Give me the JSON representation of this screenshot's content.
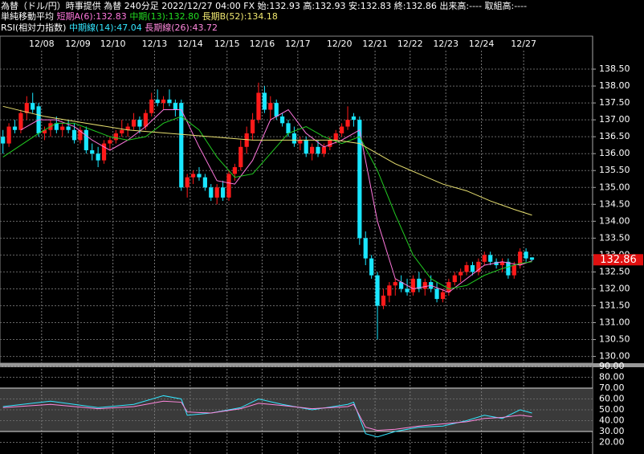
{
  "header": {
    "line1": "為替（ドル/円）時事提供 為替 240分足 2022/12/27 04:00 FX 始:132.93 高:132.93 安:132.83 終:132.86 出来高:---- 取組高:----",
    "ma_title": "単純移動平均",
    "ma_short": "短期A(6):132.83",
    "ma_mid": "中期(13):132.80",
    "ma_long": "長期B(52):134.18",
    "rsi_title": "RSI(相対力指数)",
    "rsi_mid": "中期線(14):47.04",
    "rsi_long": "長期線(26):43.72"
  },
  "chart_data": [
    {
      "type": "candlestick",
      "up_color": "#ff1a1a",
      "down_color": "#19e6ff",
      "grid": true,
      "xlim": [
        -0.5,
        99.2
      ],
      "xticks": [
        {
          "value": 6.5,
          "label": "12/08"
        },
        {
          "value": 12.6,
          "label": "12/09"
        },
        {
          "value": 18.5,
          "label": "12/10"
        },
        {
          "value": 25.5,
          "label": "12/13"
        },
        {
          "value": 31.5,
          "label": "12/14"
        },
        {
          "value": 37.7,
          "label": "12/15"
        },
        {
          "value": 43.6,
          "label": "12/16"
        },
        {
          "value": 49.6,
          "label": "12/17"
        },
        {
          "value": 56.6,
          "label": "12/20"
        },
        {
          "value": 62.6,
          "label": "12/21"
        },
        {
          "value": 68.5,
          "label": "12/22"
        },
        {
          "value": 74.5,
          "label": "12/23"
        },
        {
          "value": 80.5,
          "label": "12/24"
        },
        {
          "value": 87.6,
          "label": "12/27"
        }
      ],
      "ylim": [
        129.8,
        139.0
      ],
      "yticks": [
        {
          "value": 130,
          "label": "130.00"
        },
        {
          "value": 130.5,
          "label": "130.50"
        },
        {
          "value": 131,
          "label": "131.00"
        },
        {
          "value": 131.5,
          "label": "131.50"
        },
        {
          "value": 132,
          "label": "132.00"
        },
        {
          "value": 132.5,
          "label": "132.50"
        },
        {
          "value": 133,
          "label": "133.00"
        },
        {
          "value": 133.5,
          "label": "133.50"
        },
        {
          "value": 134,
          "label": "134.00"
        },
        {
          "value": 134.5,
          "label": "134.50"
        },
        {
          "value": 135,
          "label": "135.00"
        },
        {
          "value": 135.5,
          "label": "135.50"
        },
        {
          "value": 136,
          "label": "136.00"
        },
        {
          "value": 136.5,
          "label": "136.50"
        },
        {
          "value": 137,
          "label": "137.00"
        },
        {
          "value": 137.5,
          "label": "137.50"
        },
        {
          "value": 138,
          "label": "138.00"
        },
        {
          "value": 138.5,
          "label": "138.50"
        }
      ],
      "last_price": 132.86,
      "last_color": "#e01010",
      "ohlc": [
        [
          136.5,
          136.7,
          136.0,
          136.3
        ],
        [
          136.3,
          136.9,
          136.2,
          136.8
        ],
        [
          136.8,
          137.0,
          136.6,
          136.7
        ],
        [
          136.7,
          137.3,
          136.6,
          137.2
        ],
        [
          137.2,
          137.7,
          137.0,
          137.5
        ],
        [
          137.5,
          137.8,
          137.2,
          137.3
        ],
        [
          137.4,
          137.5,
          136.5,
          136.6
        ],
        [
          136.6,
          136.8,
          136.4,
          136.7
        ],
        [
          136.7,
          137.0,
          136.5,
          136.9
        ],
        [
          136.9,
          137.1,
          136.6,
          136.7
        ],
        [
          136.7,
          136.9,
          136.5,
          136.8
        ],
        [
          136.8,
          137.0,
          136.6,
          136.7
        ],
        [
          136.7,
          136.9,
          136.3,
          136.4
        ],
        [
          136.4,
          136.8,
          136.3,
          136.7
        ],
        [
          136.7,
          136.8,
          136.0,
          136.1
        ],
        [
          136.1,
          136.3,
          135.8,
          136.0
        ],
        [
          136.0,
          136.2,
          135.6,
          135.8
        ],
        [
          135.8,
          136.4,
          135.7,
          136.3
        ],
        [
          136.3,
          136.5,
          136.1,
          136.4
        ],
        [
          136.4,
          136.7,
          136.3,
          136.6
        ],
        [
          136.6,
          137.0,
          136.5,
          136.7
        ],
        [
          136.7,
          136.9,
          136.5,
          136.8
        ],
        [
          136.8,
          137.2,
          136.7,
          137.0
        ],
        [
          137.0,
          137.1,
          136.6,
          136.8
        ],
        [
          136.8,
          137.3,
          136.7,
          137.2
        ],
        [
          137.2,
          137.8,
          137.1,
          137.6
        ],
        [
          137.6,
          137.9,
          137.4,
          137.5
        ],
        [
          137.5,
          137.7,
          137.3,
          137.6
        ],
        [
          137.6,
          137.9,
          137.4,
          137.5
        ],
        [
          137.5,
          137.6,
          137.1,
          137.3
        ],
        [
          137.5,
          137.6,
          134.9,
          135.0
        ],
        [
          135.0,
          135.4,
          134.7,
          135.3
        ],
        [
          135.3,
          135.5,
          135.1,
          135.4
        ],
        [
          135.4,
          135.6,
          135.2,
          135.3
        ],
        [
          135.3,
          135.4,
          134.9,
          135.0
        ],
        [
          135.0,
          135.1,
          134.6,
          134.7
        ],
        [
          134.7,
          135.1,
          134.5,
          135.0
        ],
        [
          135.0,
          135.2,
          134.6,
          134.7
        ],
        [
          134.7,
          135.5,
          134.6,
          135.4
        ],
        [
          135.4,
          135.7,
          135.2,
          135.6
        ],
        [
          135.6,
          136.4,
          135.5,
          136.2
        ],
        [
          136.2,
          136.8,
          136.0,
          136.6
        ],
        [
          136.6,
          137.2,
          136.4,
          137.0
        ],
        [
          137.0,
          138.1,
          136.9,
          137.8
        ],
        [
          137.8,
          138.0,
          137.2,
          137.3
        ],
        [
          137.3,
          137.7,
          137.0,
          137.5
        ],
        [
          137.5,
          137.6,
          137.0,
          137.1
        ],
        [
          137.1,
          137.2,
          136.8,
          136.9
        ],
        [
          136.9,
          137.0,
          136.5,
          136.6
        ],
        [
          136.6,
          136.8,
          136.2,
          136.3
        ],
        [
          136.3,
          136.5,
          136.1,
          136.4
        ],
        [
          136.4,
          136.5,
          135.9,
          136.0
        ],
        [
          136.0,
          136.3,
          135.8,
          136.2
        ],
        [
          136.2,
          136.4,
          135.9,
          136.0
        ],
        [
          136.0,
          136.3,
          135.9,
          136.2
        ],
        [
          136.2,
          136.5,
          136.1,
          136.4
        ],
        [
          136.4,
          136.7,
          136.3,
          136.6
        ],
        [
          136.6,
          136.9,
          136.5,
          136.8
        ],
        [
          136.8,
          137.4,
          136.7,
          137.0
        ],
        [
          137.1,
          137.2,
          136.8,
          137.0
        ],
        [
          137.0,
          137.1,
          133.3,
          133.5
        ],
        [
          133.5,
          133.7,
          132.7,
          132.9
        ],
        [
          132.9,
          133.0,
          132.3,
          132.4
        ],
        [
          132.4,
          132.5,
          130.5,
          131.5
        ],
        [
          131.5,
          132.0,
          131.4,
          131.8
        ],
        [
          131.8,
          132.2,
          131.6,
          132.1
        ],
        [
          132.1,
          132.3,
          131.8,
          132.2
        ],
        [
          132.2,
          132.4,
          131.9,
          132.0
        ],
        [
          132.0,
          132.3,
          131.8,
          131.9
        ],
        [
          131.9,
          132.4,
          131.8,
          132.3
        ],
        [
          132.3,
          132.5,
          131.9,
          132.0
        ],
        [
          132.0,
          132.3,
          131.8,
          132.2
        ],
        [
          132.2,
          132.4,
          131.9,
          132.0
        ],
        [
          132.0,
          132.2,
          131.6,
          131.7
        ],
        [
          131.7,
          132.0,
          131.6,
          131.9
        ],
        [
          131.9,
          132.3,
          131.8,
          132.2
        ],
        [
          132.2,
          132.5,
          132.1,
          132.4
        ],
        [
          132.4,
          132.6,
          132.2,
          132.5
        ],
        [
          132.5,
          132.8,
          132.4,
          132.7
        ],
        [
          132.7,
          132.8,
          132.4,
          132.5
        ],
        [
          132.5,
          132.9,
          132.4,
          132.8
        ],
        [
          132.8,
          133.1,
          132.7,
          133.0
        ],
        [
          133.0,
          133.1,
          132.7,
          132.8
        ],
        [
          132.8,
          132.9,
          132.6,
          132.7
        ],
        [
          132.7,
          132.9,
          132.5,
          132.8
        ],
        [
          132.8,
          132.9,
          132.3,
          132.4
        ],
        [
          132.4,
          132.8,
          132.3,
          132.7
        ],
        [
          132.7,
          133.2,
          132.6,
          133.1
        ],
        [
          133.1,
          133.2,
          132.8,
          132.9
        ],
        [
          132.93,
          132.93,
          132.83,
          132.86
        ]
      ],
      "series": [
        {
          "color": "#ff77dd",
          "x": [
            3,
            6,
            9,
            12,
            15,
            18,
            21,
            24,
            27,
            30,
            33,
            36,
            39,
            42,
            45,
            48,
            51,
            54,
            57,
            60,
            63,
            66,
            69,
            72,
            75,
            78,
            81,
            84,
            87,
            89
          ],
          "values": [
            136.7,
            137.0,
            137.0,
            136.8,
            136.4,
            136.1,
            136.4,
            136.8,
            137.3,
            137.3,
            136.2,
            135.2,
            135.1,
            135.8,
            137.0,
            137.3,
            136.6,
            136.2,
            136.4,
            136.7,
            134.0,
            132.3,
            132.0,
            132.1,
            131.9,
            132.3,
            132.7,
            132.8,
            132.7,
            132.83
          ]
        },
        {
          "color": "#22cc22",
          "x": [
            0,
            6,
            9,
            12,
            15,
            18,
            21,
            24,
            27,
            30,
            33,
            36,
            39,
            42,
            45,
            48,
            51,
            54,
            57,
            60,
            63,
            66,
            69,
            72,
            75,
            78,
            81,
            84,
            87,
            89
          ],
          "values": [
            135.9,
            136.6,
            136.9,
            136.9,
            136.7,
            136.5,
            136.4,
            136.5,
            136.9,
            137.1,
            136.7,
            135.9,
            135.3,
            135.4,
            136.0,
            136.6,
            136.8,
            136.5,
            136.3,
            136.5,
            135.5,
            134.2,
            133.0,
            132.3,
            132.0,
            132.1,
            132.4,
            132.6,
            132.75,
            132.8
          ]
        },
        {
          "color": "#e8e070",
          "x": [
            0,
            7,
            14,
            21,
            28,
            35,
            42,
            49,
            56,
            60,
            63,
            66,
            70,
            74,
            78,
            82,
            86,
            89
          ],
          "values": [
            137.4,
            137.1,
            136.9,
            136.7,
            136.6,
            136.5,
            136.4,
            136.4,
            136.4,
            136.3,
            136.0,
            135.7,
            135.4,
            135.1,
            134.9,
            134.6,
            134.35,
            134.18
          ]
        }
      ]
    },
    {
      "type": "line",
      "ylim": [
        10,
        90
      ],
      "yticks": [
        {
          "value": 20,
          "label": "20.00"
        },
        {
          "value": 30,
          "label": "30.00"
        },
        {
          "value": 40,
          "label": "40.00"
        },
        {
          "value": 50,
          "label": "50.00"
        },
        {
          "value": 60,
          "label": "60.00"
        },
        {
          "value": 70,
          "label": "70.00"
        },
        {
          "value": 80,
          "label": "80.00"
        },
        {
          "value": 90,
          "label": "90.00"
        }
      ],
      "band": [
        30,
        70
      ],
      "x": [
        0,
        8,
        16,
        22,
        27,
        30,
        31,
        35,
        40,
        43,
        47,
        52,
        58,
        59,
        61,
        63,
        66,
        70,
        74,
        78,
        81,
        84,
        87,
        89
      ],
      "series": [
        {
          "color": "#33e6ff",
          "values": [
            53,
            58,
            52,
            55,
            63,
            60,
            45,
            47,
            52,
            60,
            55,
            50,
            55,
            57,
            28,
            25,
            30,
            34,
            35,
            40,
            45,
            42,
            50,
            47.04
          ]
        },
        {
          "color": "#ff88dd",
          "values": [
            52,
            55,
            51,
            53,
            58,
            57,
            48,
            47,
            51,
            56,
            54,
            51,
            53,
            55,
            34,
            31,
            32,
            35,
            37,
            39,
            42,
            43,
            45,
            43.72
          ]
        }
      ]
    }
  ]
}
